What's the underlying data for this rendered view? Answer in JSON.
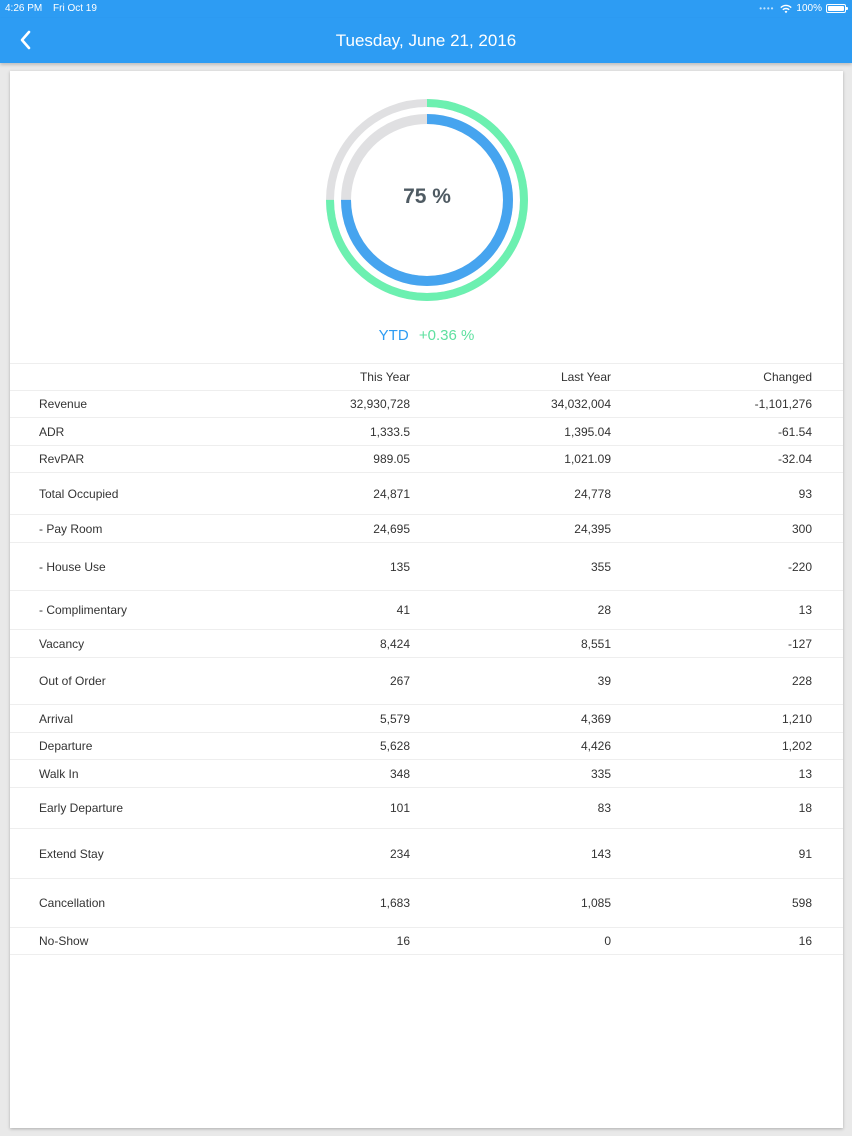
{
  "status_bar": {
    "time": "4:26 PM",
    "date": "Fri Oct 19",
    "battery": "100%"
  },
  "nav": {
    "title": "Tuesday, June 21, 2016"
  },
  "gauge": {
    "value_label": "75 %",
    "inner_percent": 75,
    "outer_percent": 75,
    "inner_color": "#46a4ef",
    "outer_color": "#6cf0b0",
    "track_color": "#e0e0e2"
  },
  "ytd": {
    "label": "YTD",
    "change": "+0.36 %"
  },
  "table": {
    "headers": {
      "this_year": "This Year",
      "last_year": "Last Year",
      "changed": "Changed"
    },
    "rows": [
      {
        "label": "Revenue",
        "this_year": "32,930,728",
        "last_year": "34,032,004",
        "changed": "-1,101,276"
      },
      {
        "label": "ADR",
        "this_year": "1,333.5",
        "last_year": "1,395.04",
        "changed": "-61.54"
      },
      {
        "label": "RevPAR",
        "this_year": "989.05",
        "last_year": "1,021.09",
        "changed": "-32.04"
      },
      {
        "label": "Total Occupied",
        "this_year": "24,871",
        "last_year": "24,778",
        "changed": "93"
      },
      {
        "label": "- Pay Room",
        "this_year": "24,695",
        "last_year": "24,395",
        "changed": "300"
      },
      {
        "label": "- House Use",
        "this_year": "135",
        "last_year": "355",
        "changed": "-220"
      },
      {
        "label": "- Complimentary",
        "this_year": "41",
        "last_year": "28",
        "changed": "13"
      },
      {
        "label": "Vacancy",
        "this_year": "8,424",
        "last_year": "8,551",
        "changed": "-127"
      },
      {
        "label": "Out of Order",
        "this_year": "267",
        "last_year": "39",
        "changed": "228"
      },
      {
        "label": "Arrival",
        "this_year": "5,579",
        "last_year": "4,369",
        "changed": "1,210"
      },
      {
        "label": "Departure",
        "this_year": "5,628",
        "last_year": "4,426",
        "changed": "1,202"
      },
      {
        "label": "Walk In",
        "this_year": "348",
        "last_year": "335",
        "changed": "13"
      },
      {
        "label": "Early Departure",
        "this_year": "101",
        "last_year": "83",
        "changed": "18"
      },
      {
        "label": "Extend Stay",
        "this_year": "234",
        "last_year": "143",
        "changed": "91"
      },
      {
        "label": "Cancellation",
        "this_year": "1,683",
        "last_year": "1,085",
        "changed": "598"
      },
      {
        "label": "No-Show",
        "this_year": "16",
        "last_year": "0",
        "changed": "16"
      }
    ]
  }
}
